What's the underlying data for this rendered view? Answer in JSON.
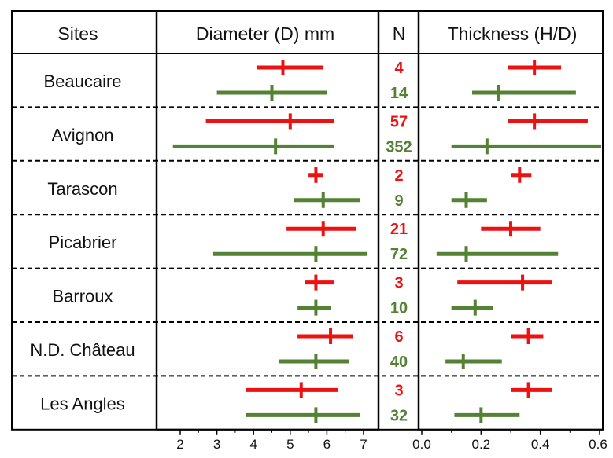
{
  "chart_data": {
    "type": "range-dot-table",
    "headers": {
      "sites": "Sites",
      "diameter": "Diameter (D) mm",
      "n": "N",
      "thickness": "Thickness (H/D)"
    },
    "colors": {
      "red": "#ee1111",
      "green": "#548235"
    },
    "diameter_axis": {
      "range": [
        1.5,
        7.3
      ],
      "ticks": [
        "2",
        "3",
        "4",
        "5",
        "6",
        "7"
      ]
    },
    "thickness_axis": {
      "range": [
        0.0,
        0.6
      ],
      "ticks": [
        "0.0",
        "0.2",
        "0.4",
        "0.6"
      ]
    },
    "rows": [
      {
        "site": "Beaucaire",
        "red": {
          "n": "4",
          "diameter": {
            "min": 4.1,
            "mean": 4.8,
            "max": 5.9
          },
          "thickness": {
            "min": 0.29,
            "mean": 0.38,
            "max": 0.47
          }
        },
        "green": {
          "n": "14",
          "diameter": {
            "min": 3.0,
            "mean": 4.5,
            "max": 6.0
          },
          "thickness": {
            "min": 0.17,
            "mean": 0.26,
            "max": 0.52
          }
        }
      },
      {
        "site": "Avignon",
        "red": {
          "n": "57",
          "diameter": {
            "min": 2.7,
            "mean": 5.0,
            "max": 6.2
          },
          "thickness": {
            "min": 0.29,
            "mean": 0.38,
            "max": 0.56
          }
        },
        "green": {
          "n": "352",
          "diameter": {
            "min": 1.8,
            "mean": 4.6,
            "max": 6.2
          },
          "thickness": {
            "min": 0.1,
            "mean": 0.22,
            "max": 0.62
          }
        }
      },
      {
        "site": "Tarascon",
        "red": {
          "n": "2",
          "diameter": {
            "min": 5.5,
            "mean": 5.7,
            "max": 5.9
          },
          "thickness": {
            "min": 0.3,
            "mean": 0.33,
            "max": 0.37
          }
        },
        "green": {
          "n": "9",
          "diameter": {
            "min": 5.1,
            "mean": 5.9,
            "max": 6.9
          },
          "thickness": {
            "min": 0.1,
            "mean": 0.15,
            "max": 0.22
          }
        }
      },
      {
        "site": "Picabrier",
        "red": {
          "n": "21",
          "diameter": {
            "min": 4.9,
            "mean": 5.9,
            "max": 6.8
          },
          "thickness": {
            "min": 0.2,
            "mean": 0.3,
            "max": 0.4
          }
        },
        "green": {
          "n": "72",
          "diameter": {
            "min": 2.9,
            "mean": 5.7,
            "max": 7.1
          },
          "thickness": {
            "min": 0.05,
            "mean": 0.15,
            "max": 0.46
          }
        }
      },
      {
        "site": "Barroux",
        "red": {
          "n": "3",
          "diameter": {
            "min": 5.4,
            "mean": 5.7,
            "max": 6.2
          },
          "thickness": {
            "min": 0.12,
            "mean": 0.34,
            "max": 0.44
          }
        },
        "green": {
          "n": "10",
          "diameter": {
            "min": 5.2,
            "mean": 5.7,
            "max": 6.1
          },
          "thickness": {
            "min": 0.1,
            "mean": 0.18,
            "max": 0.24
          }
        }
      },
      {
        "site": "N.D. Château",
        "red": {
          "n": "6",
          "diameter": {
            "min": 5.2,
            "mean": 6.1,
            "max": 6.7
          },
          "thickness": {
            "min": 0.3,
            "mean": 0.36,
            "max": 0.41
          }
        },
        "green": {
          "n": "40",
          "diameter": {
            "min": 4.7,
            "mean": 5.7,
            "max": 6.6
          },
          "thickness": {
            "min": 0.08,
            "mean": 0.14,
            "max": 0.27
          }
        }
      },
      {
        "site": "Les Angles",
        "red": {
          "n": "3",
          "diameter": {
            "min": 3.8,
            "mean": 5.3,
            "max": 6.3
          },
          "thickness": {
            "min": 0.3,
            "mean": 0.36,
            "max": 0.44
          }
        },
        "green": {
          "n": "32",
          "diameter": {
            "min": 3.8,
            "mean": 5.7,
            "max": 6.9
          },
          "thickness": {
            "min": 0.11,
            "mean": 0.2,
            "max": 0.33
          }
        }
      }
    ]
  }
}
